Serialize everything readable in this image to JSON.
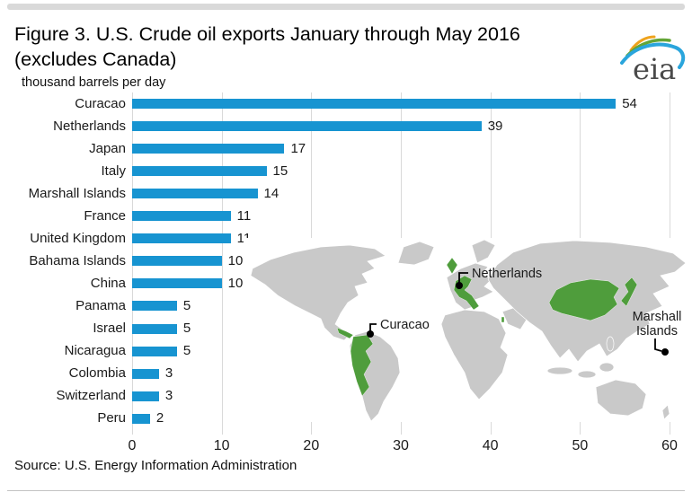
{
  "header": {
    "title_line1": "Figure 3. U.S. Crude oil exports January through May 2016",
    "title_line2": "(excludes Canada)",
    "logo_text": "eia"
  },
  "chart_data": {
    "type": "bar",
    "orientation": "horizontal",
    "title": "Figure 3. U.S. Crude oil exports January through May 2016 (excludes Canada)",
    "units_label": "thousand barrels per day",
    "categories": [
      "Curacao",
      "Netherlands",
      "Japan",
      "Italy",
      "Marshall Islands",
      "France",
      "United Kingdom",
      "Bahama Islands",
      "China",
      "Panama",
      "Israel",
      "Nicaragua",
      "Colombia",
      "Switzerland",
      "Peru"
    ],
    "values": [
      54,
      39,
      17,
      15,
      14,
      11,
      11,
      10,
      10,
      5,
      5,
      5,
      3,
      3,
      2
    ],
    "xlim": [
      0,
      60
    ],
    "xticks": [
      0,
      10,
      20,
      30,
      40,
      50,
      60
    ],
    "grid": true,
    "legend": false,
    "bar_color": "#1794d1",
    "gridline_color": "#d9d9d9"
  },
  "map": {
    "land_color": "#c9c9c9",
    "highlight_color": "#4f9d3c",
    "labels": {
      "netherlands": "Netherlands",
      "curacao": "Curacao",
      "marshall_line1": "Marshall",
      "marshall_line2": "Islands"
    }
  },
  "footer": {
    "source": "Source: U.S. Energy Information Administration"
  }
}
